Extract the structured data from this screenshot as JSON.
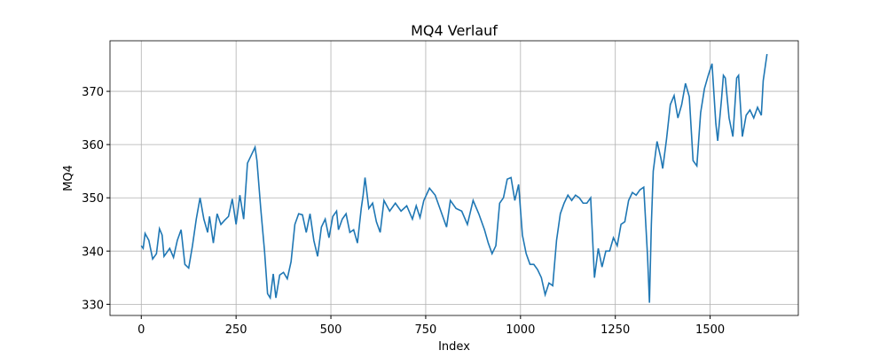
{
  "chart_data": {
    "type": "line",
    "title": "MQ4 Verlauf",
    "xlabel": "Index",
    "ylabel": "MQ4",
    "xlim": [
      -82.5,
      1732.5
    ],
    "ylim": [
      327.9,
      379.5
    ],
    "xticks": [
      0,
      250,
      500,
      750,
      1000,
      1250,
      1500
    ],
    "yticks": [
      330,
      340,
      350,
      360,
      370
    ],
    "grid": true,
    "x": [
      0,
      5,
      10,
      20,
      30,
      40,
      48,
      55,
      60,
      75,
      85,
      95,
      105,
      115,
      125,
      135,
      145,
      155,
      165,
      175,
      180,
      190,
      200,
      210,
      220,
      230,
      240,
      250,
      260,
      270,
      280,
      290,
      300,
      305,
      315,
      325,
      333,
      340,
      348,
      355,
      365,
      375,
      385,
      395,
      405,
      415,
      425,
      435,
      445,
      455,
      465,
      475,
      485,
      495,
      505,
      515,
      520,
      530,
      540,
      550,
      560,
      570,
      580,
      585,
      590,
      600,
      610,
      620,
      630,
      640,
      655,
      670,
      685,
      700,
      715,
      725,
      735,
      745,
      760,
      775,
      785,
      795,
      805,
      815,
      830,
      845,
      860,
      875,
      890,
      905,
      915,
      925,
      935,
      945,
      955,
      965,
      975,
      985,
      995,
      1005,
      1015,
      1025,
      1035,
      1045,
      1055,
      1065,
      1075,
      1085,
      1095,
      1105,
      1115,
      1125,
      1135,
      1145,
      1155,
      1165,
      1175,
      1185,
      1195,
      1205,
      1215,
      1225,
      1235,
      1245,
      1255,
      1265,
      1275,
      1285,
      1295,
      1305,
      1315,
      1325,
      1335,
      1340,
      1345,
      1350,
      1360,
      1370,
      1375,
      1385,
      1395,
      1405,
      1415,
      1425,
      1435,
      1445,
      1455,
      1465,
      1475,
      1485,
      1495,
      1505,
      1515,
      1520,
      1530,
      1535,
      1540,
      1550,
      1560,
      1570,
      1575,
      1585,
      1595,
      1605,
      1615,
      1625,
      1635,
      1640,
      1650
    ],
    "series": [
      {
        "name": "MQ4",
        "color": "#1f77b4",
        "values": [
          341,
          340.5,
          343.3,
          342,
          338.5,
          339.5,
          344.2,
          343,
          339,
          340.5,
          338.8,
          342,
          344,
          337.5,
          336.8,
          341,
          346,
          350,
          346,
          343.5,
          346.5,
          341.5,
          347,
          345,
          345.8,
          346.5,
          349.8,
          345,
          350.5,
          346,
          356.5,
          358,
          359.5,
          357,
          348,
          340,
          332,
          331.2,
          335.7,
          331.2,
          335.5,
          336,
          334.8,
          338,
          345,
          347,
          346.8,
          343.5,
          347,
          342,
          339,
          344.5,
          346,
          342.5,
          346.5,
          347.5,
          344,
          346,
          347,
          343.5,
          344,
          341.5,
          348,
          350.5,
          353.8,
          348,
          349,
          345.5,
          343.5,
          349.5,
          347.5,
          349,
          347.5,
          348.5,
          346,
          348.5,
          346.3,
          349.5,
          351.8,
          350.5,
          348.5,
          346.5,
          344.5,
          349.5,
          348,
          347.5,
          345,
          349.5,
          347,
          344,
          341.5,
          339.5,
          341,
          349,
          350,
          353.5,
          353.8,
          349.5,
          352.5,
          343,
          339.5,
          337.5,
          337.5,
          336.5,
          335,
          331.8,
          334,
          333.5,
          342,
          347,
          349,
          350.5,
          349.5,
          350.5,
          350,
          349,
          349,
          350,
          335,
          340.5,
          337,
          340,
          340,
          342.5,
          341,
          345,
          345.5,
          349.5,
          351,
          350.5,
          351.5,
          352,
          339,
          330.3,
          345,
          355,
          360.6,
          357.5,
          355.5,
          361,
          367.5,
          369.2,
          365,
          367.5,
          371.5,
          369,
          357,
          356,
          366,
          370.5,
          373,
          375.2,
          364,
          360.7,
          368.5,
          373,
          372.5,
          365,
          361.5,
          372.5,
          373,
          361.5,
          365.5,
          366.5,
          365,
          367,
          365.5,
          372,
          377
        ]
      }
    ]
  }
}
